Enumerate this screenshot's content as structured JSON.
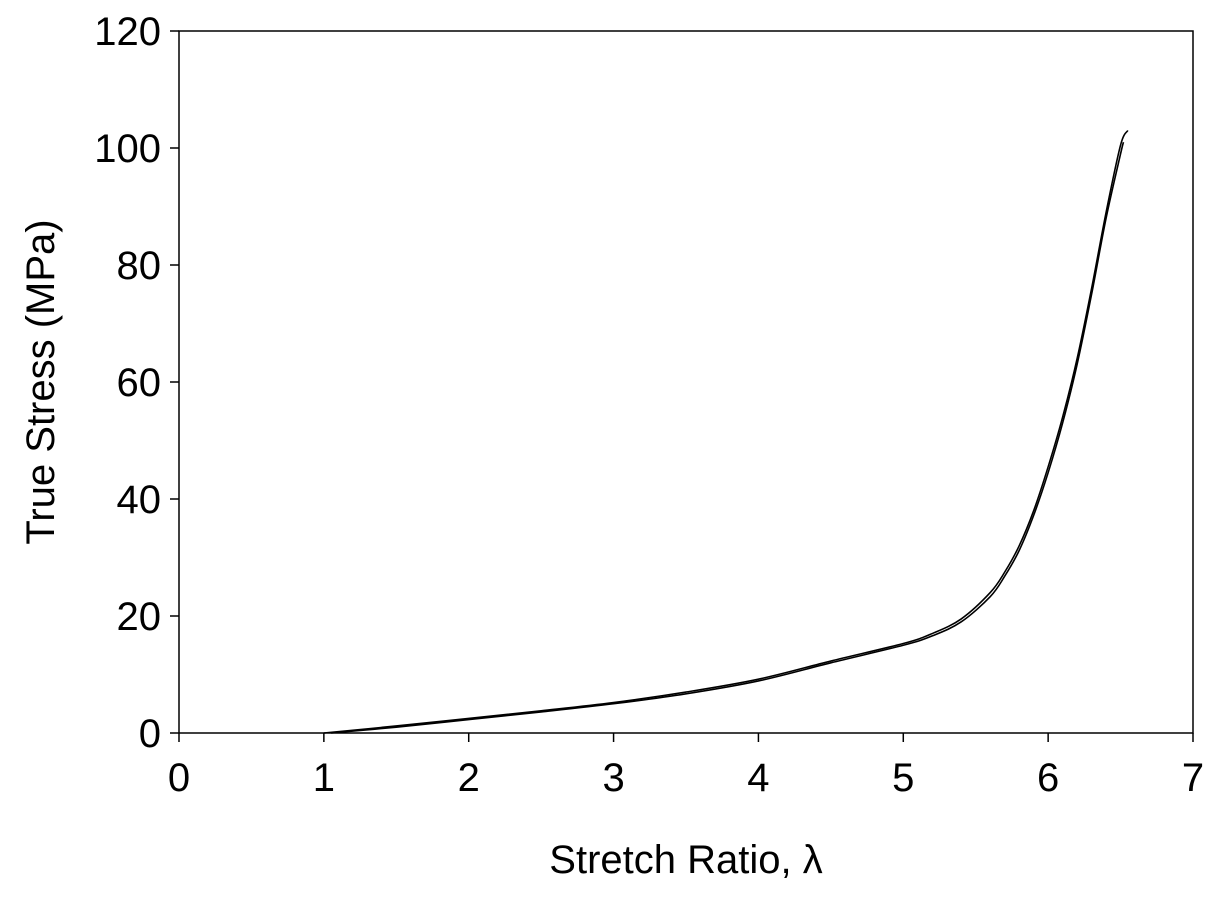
{
  "chart_data": {
    "type": "line",
    "title": "",
    "xlabel": "Stretch Ratio, λ",
    "ylabel": "True Stress (MPa)",
    "xlim": [
      0,
      7
    ],
    "ylim": [
      0,
      120
    ],
    "xticks": [
      "0",
      "1",
      "2",
      "3",
      "4",
      "5",
      "6",
      "7"
    ],
    "yticks": [
      "0",
      "20",
      "40",
      "60",
      "80",
      "100",
      "120"
    ],
    "grid": false,
    "legend": "none",
    "line_color": "#000000",
    "series": [
      {
        "x": [
          1.0,
          1.5,
          2.0,
          2.5,
          3.0,
          3.5,
          4.0,
          4.5,
          5.0,
          5.2,
          5.4,
          5.6,
          5.7,
          5.8,
          5.9,
          6.0,
          6.1,
          6.2,
          6.3,
          6.4,
          6.5,
          6.55
        ],
        "y": [
          0,
          1.2,
          2.5,
          3.8,
          5.2,
          7.0,
          9.2,
          12.3,
          15.3,
          17.0,
          19.5,
          24.0,
          27.5,
          32.0,
          38.0,
          45.5,
          54.0,
          64.0,
          76.0,
          89.0,
          100.5,
          103.0
        ]
      },
      {
        "x": [
          1.05,
          1.5,
          2.0,
          2.5,
          3.0,
          3.5,
          4.0,
          4.5,
          5.0,
          5.2,
          5.4,
          5.6,
          5.7,
          5.8,
          5.9,
          6.0,
          6.1,
          6.2,
          6.3,
          6.4,
          6.5,
          6.52
        ],
        "y": [
          0,
          1.0,
          2.3,
          3.6,
          5.0,
          6.7,
          8.9,
          12.0,
          15.0,
          16.6,
          19.0,
          23.3,
          26.8,
          31.2,
          37.2,
          44.5,
          53.0,
          63.0,
          75.0,
          88.0,
          99.0,
          101.0
        ]
      }
    ]
  }
}
